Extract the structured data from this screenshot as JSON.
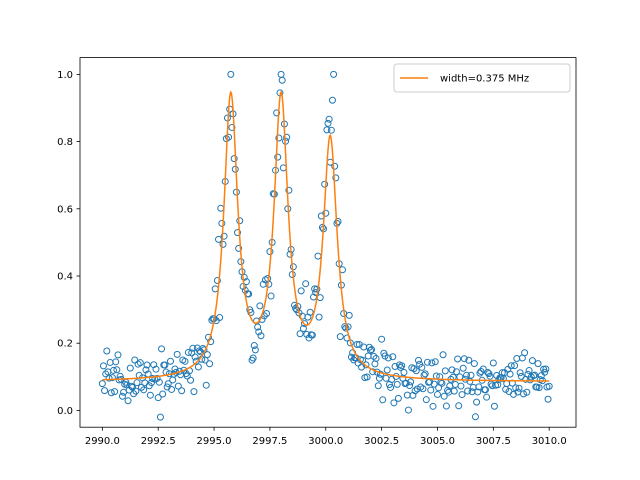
{
  "chart_data": {
    "type": "scatter",
    "title": "",
    "xlabel": "",
    "ylabel": "",
    "xlim": [
      2989.0,
      3011.2
    ],
    "ylim": [
      -0.05,
      1.05
    ],
    "xticks": [
      2990.0,
      2992.5,
      2995.0,
      2997.5,
      3000.0,
      3002.5,
      3005.0,
      3007.5,
      3010.0
    ],
    "xtick_labels": [
      "2990.0",
      "2992.5",
      "2995.0",
      "2997.5",
      "3000.0",
      "3002.5",
      "3005.0",
      "3007.5",
      "3010.0"
    ],
    "yticks": [
      0.0,
      0.2,
      0.4,
      0.6,
      0.8,
      1.0
    ],
    "ytick_labels": [
      "0.0",
      "0.2",
      "0.4",
      "0.6",
      "0.8",
      "1.0"
    ],
    "grid": false,
    "legend_position": "top-right",
    "model": {
      "name": "width=0.375 MHz",
      "baseline": 0.085,
      "centers": [
        2995.75,
        2998.0,
        3000.2
      ],
      "amplitudes": [
        0.835,
        0.82,
        0.705
      ],
      "gamma": 0.375,
      "x_range": [
        2990.0,
        3010.0
      ],
      "samples": 801
    },
    "series": [
      {
        "style": "hollow-circle",
        "color": "#1f77b4",
        "x_range": [
          2990.0,
          3010.0
        ],
        "count": 401,
        "noise_amplitude": 0.03,
        "relative_noise": 0.08,
        "seed": 7
      },
      {
        "name": "width=0.375 MHz",
        "style": "line",
        "color": "#ff7f0e"
      }
    ]
  }
}
